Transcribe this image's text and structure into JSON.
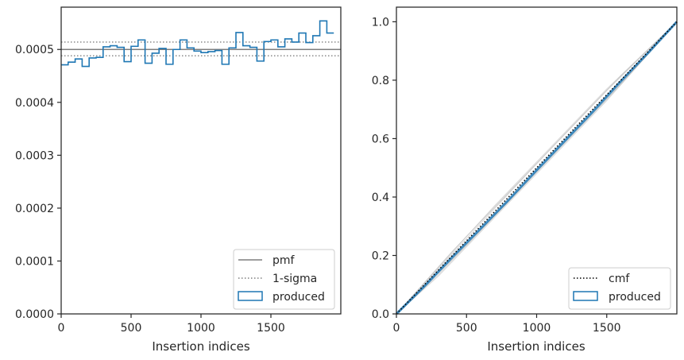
{
  "chart_data": [
    {
      "type": "step",
      "xlabel": "Insertion indices",
      "ylabel": "",
      "xlim": [
        0,
        2000
      ],
      "ylim": [
        0,
        0.00058
      ],
      "xticks": [
        0,
        500,
        1000,
        1500
      ],
      "xtick_labels": [
        "0",
        "500",
        "1000",
        "1500"
      ],
      "yticks": [
        0,
        0.0001,
        0.0002,
        0.0003,
        0.0004,
        0.0005
      ],
      "ytick_labels": [
        "0.0000",
        "0.0001",
        "0.0002",
        "0.0003",
        "0.0004",
        "0.0005"
      ],
      "pmf": 0.0005,
      "sigma_upper": 0.000514,
      "sigma_lower": 0.000488,
      "bin_width": 50,
      "produced": [
        0.000471,
        0.000476,
        0.000482,
        0.000468,
        0.000484,
        0.000485,
        0.000505,
        0.000507,
        0.000504,
        0.000477,
        0.000506,
        0.000518,
        0.000474,
        0.000493,
        0.000502,
        0.000472,
        0.0005,
        0.000518,
        0.000503,
        0.000497,
        0.000494,
        0.000496,
        0.000498,
        0.000472,
        0.000503,
        0.000532,
        0.000507,
        0.000504,
        0.000478,
        0.000515,
        0.000518,
        0.000505,
        0.00052,
        0.000514,
        0.000531,
        0.000513,
        0.000526,
        0.000554,
        0.000531
      ],
      "legend": {
        "placement": "lower right",
        "entries": [
          {
            "label": "pmf",
            "style": "line",
            "color": "#7f7f7f"
          },
          {
            "label": "1-sigma",
            "style": "dotted",
            "color": "#7f7f7f"
          },
          {
            "label": "produced",
            "style": "box",
            "color": "#1f77b4"
          }
        ]
      },
      "colors": {
        "produced": "#1f77b4",
        "reference": "#7f7f7f"
      }
    },
    {
      "type": "line",
      "xlabel": "Insertion indices",
      "ylabel": "",
      "xlim": [
        0,
        2000
      ],
      "ylim": [
        0,
        1.05
      ],
      "xticks": [
        0,
        500,
        1000,
        1500
      ],
      "xtick_labels": [
        "0",
        "500",
        "1000",
        "1500"
      ],
      "yticks": [
        0,
        0.2,
        0.4,
        0.6,
        0.8,
        1.0
      ],
      "ytick_labels": [
        "0.0",
        "0.2",
        "0.4",
        "0.6",
        "0.8",
        "1.0"
      ],
      "cmf": {
        "x": [
          0,
          2000
        ],
        "y": [
          0,
          1.0
        ]
      },
      "produced": {
        "x": [
          0,
          200,
          400,
          600,
          800,
          1000,
          1200,
          1400,
          1600,
          1800,
          2000
        ],
        "y": [
          0,
          0.095,
          0.195,
          0.292,
          0.39,
          0.492,
          0.592,
          0.692,
          0.796,
          0.896,
          1.0
        ]
      },
      "spread": [
        {
          "x": [
            0,
            300,
            700,
            1100,
            1500,
            2000
          ],
          "y": [
            0,
            0.16,
            0.37,
            0.57,
            0.77,
            1.0
          ]
        },
        {
          "x": [
            0,
            300,
            700,
            1100,
            1500,
            2000
          ],
          "y": [
            0,
            0.13,
            0.33,
            0.53,
            0.73,
            1.0
          ]
        },
        {
          "x": [
            0,
            300,
            700,
            1100,
            1500,
            2000
          ],
          "y": [
            0,
            0.155,
            0.36,
            0.565,
            0.765,
            1.0
          ]
        },
        {
          "x": [
            0,
            300,
            700,
            1100,
            1500,
            2000
          ],
          "y": [
            0,
            0.135,
            0.335,
            0.535,
            0.735,
            1.0
          ]
        },
        {
          "x": [
            0,
            400,
            800,
            1200,
            1600,
            2000
          ],
          "y": [
            0,
            0.215,
            0.415,
            0.615,
            0.815,
            1.0
          ]
        },
        {
          "x": [
            0,
            400,
            800,
            1200,
            1600,
            2000
          ],
          "y": [
            0,
            0.188,
            0.388,
            0.588,
            0.785,
            1.0
          ]
        },
        {
          "x": [
            0,
            500,
            1000,
            1500,
            2000
          ],
          "y": [
            0,
            0.265,
            0.515,
            0.765,
            1.0
          ]
        },
        {
          "x": [
            0,
            500,
            1000,
            1500,
            2000
          ],
          "y": [
            0,
            0.235,
            0.485,
            0.735,
            1.0
          ]
        }
      ],
      "legend": {
        "placement": "lower right",
        "entries": [
          {
            "label": "cmf",
            "style": "dotted",
            "color": "#000000"
          },
          {
            "label": "produced",
            "style": "box",
            "color": "#1f77b4"
          }
        ]
      },
      "colors": {
        "produced": "#1f77b4",
        "reference": "#000000",
        "spread": "#c8c8c8"
      }
    }
  ]
}
